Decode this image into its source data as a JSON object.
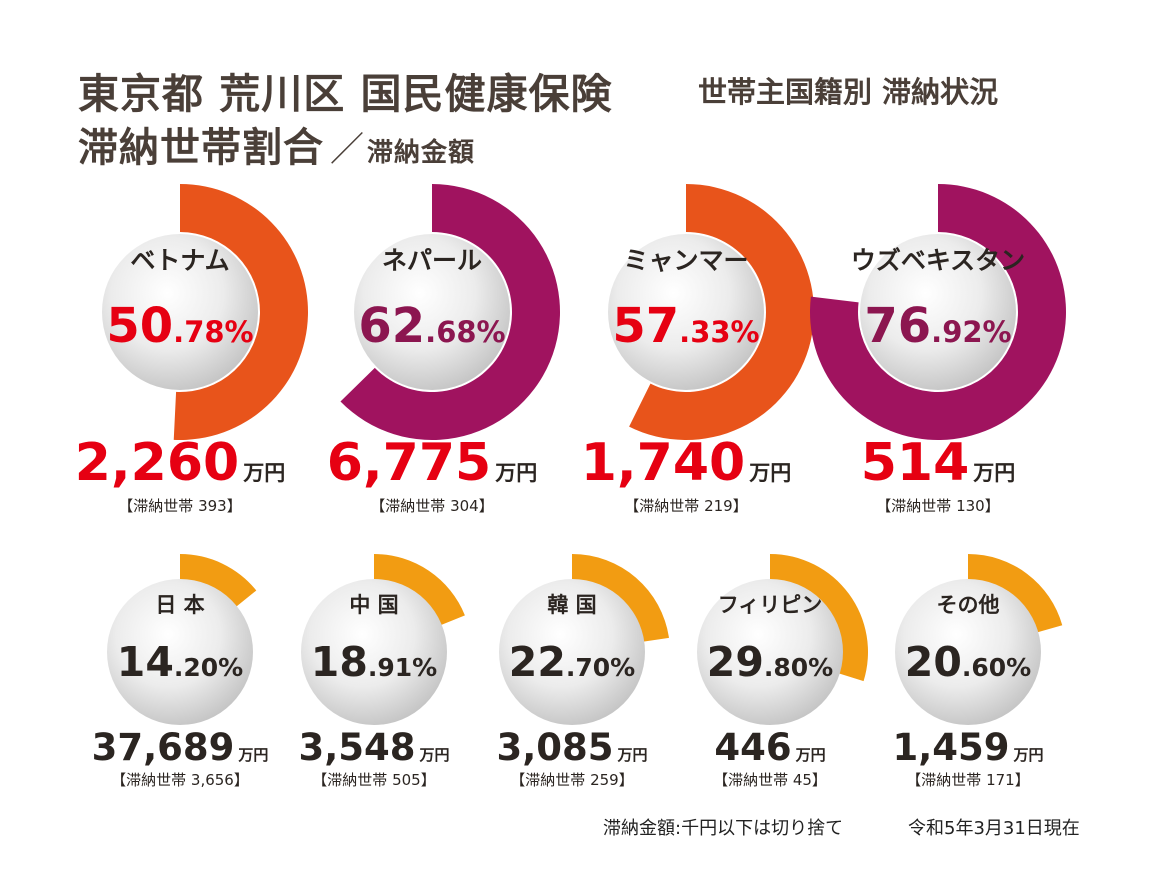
{
  "title": {
    "line1": "東京都 荒川区 国民健康保険",
    "side": "世帯主国籍別 滞納状況",
    "line2_main": "滞納世帯割合",
    "line2_sep": "／",
    "line2_sub": "滞納金額"
  },
  "footnote": {
    "note": "滞納金額:千円以下は切り捨て",
    "date": "令和5年3月31日現在"
  },
  "chart_data": {
    "type": "donut",
    "title": "東京都 荒川区 国民健康保険 滞納世帯割合／滞納金額",
    "amount_unit": "万円",
    "households_prefix": "【滞納世帯 ",
    "households_suffix": "】",
    "colors": {
      "orange": "#e8541b",
      "purple": "#a0135f",
      "amber": "#f29c12",
      "red": "#e60012",
      "darkred": "#8c1650",
      "dark": "#2b2521"
    },
    "series": [
      {
        "name": "ベトナム",
        "rate_int": "50",
        "rate_dec": ".78%",
        "rate": 50.78,
        "amount_text": "2,260",
        "amount": 2260,
        "households_text": "393",
        "households": 393,
        "ring_color": "#e8541b",
        "pct_color": "#e60012"
      },
      {
        "name": "ネパール",
        "rate_int": "62",
        "rate_dec": ".68%",
        "rate": 62.68,
        "amount_text": "6,775",
        "amount": 6775,
        "households_text": "304",
        "households": 304,
        "ring_color": "#a0135f",
        "pct_color": "#8c1650"
      },
      {
        "name": "ミャンマー",
        "rate_int": "57",
        "rate_dec": ".33%",
        "rate": 57.33,
        "amount_text": "1,740",
        "amount": 1740,
        "households_text": "219",
        "households": 219,
        "ring_color": "#e8541b",
        "pct_color": "#e60012"
      },
      {
        "name": "ウズベキスタン",
        "rate_int": "76",
        "rate_dec": ".92%",
        "rate": 76.92,
        "amount_text": "514",
        "amount": 514,
        "households_text": "130",
        "households": 130,
        "ring_color": "#a0135f",
        "pct_color": "#8c1650"
      },
      {
        "name": "日 本",
        "rate_int": "14",
        "rate_dec": ".20%",
        "rate": 14.2,
        "amount_text": "37,689",
        "amount": 37689,
        "households_text": "3,656",
        "households": 3656,
        "ring_color": "#f29c12",
        "pct_color": "#2b2521"
      },
      {
        "name": "中 国",
        "rate_int": "18",
        "rate_dec": ".91%",
        "rate": 18.91,
        "amount_text": "3,548",
        "amount": 3548,
        "households_text": "505",
        "households": 505,
        "ring_color": "#f29c12",
        "pct_color": "#2b2521"
      },
      {
        "name": "韓 国",
        "rate_int": "22",
        "rate_dec": ".70%",
        "rate": 22.7,
        "amount_text": "3,085",
        "amount": 3085,
        "households_text": "259",
        "households": 259,
        "ring_color": "#f29c12",
        "pct_color": "#2b2521"
      },
      {
        "name": "フィリピン",
        "rate_int": "29",
        "rate_dec": ".80%",
        "rate": 29.8,
        "amount_text": "446",
        "amount": 446,
        "households_text": "45",
        "households": 45,
        "ring_color": "#f29c12",
        "pct_color": "#2b2521"
      },
      {
        "name": "その他",
        "rate_int": "20",
        "rate_dec": ".60%",
        "rate": 20.6,
        "amount_text": "1,459",
        "amount": 1459,
        "households_text": "171",
        "households": 171,
        "ring_color": "#f29c12",
        "pct_color": "#2b2521"
      }
    ]
  }
}
